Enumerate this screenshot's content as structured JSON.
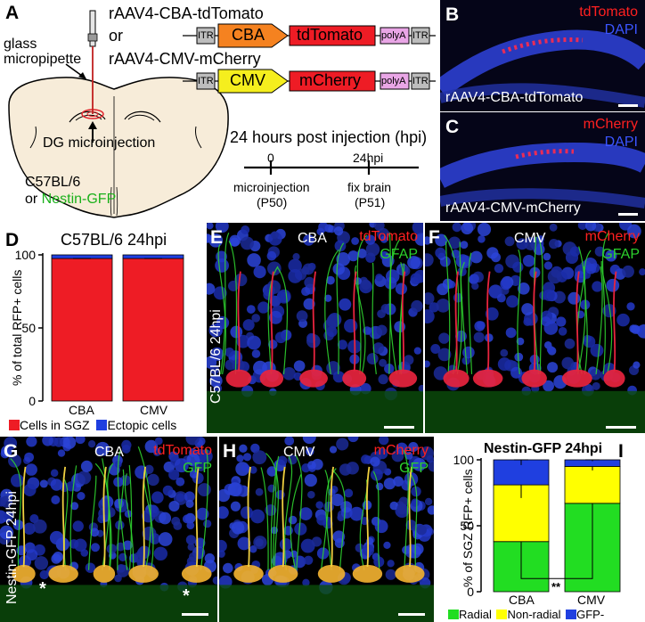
{
  "panelA": {
    "label": "A",
    "construct1": {
      "name": "rAAV4-CBA-tdTomato",
      "itr": "ITR",
      "promoter": "CBA",
      "gene": "tdTomato",
      "polyA": "polyA"
    },
    "or_text": "or",
    "construct2": {
      "name": "rAAV4-CMV-mCherry",
      "itr": "ITR",
      "promoter": "CMV",
      "gene": "mCherry",
      "polyA": "polyA"
    },
    "pipette_label_1": "glass",
    "pipette_label_2": "micropipette",
    "injection_label": "DG microinjection",
    "mouse_line_1": "C57BL/6",
    "mouse_line_2_prefix": "or ",
    "mouse_line_2_green": "Nestin-GFP",
    "timeline_title": "24 hours post injection (hpi)",
    "timeline_tick0": "0",
    "timeline_tick1": "24hpi",
    "event0_line1": "microinjection",
    "event0_line2": "(P50)",
    "event1_line1": "fix brain",
    "event1_line2": "(P51)",
    "colors": {
      "cba": "#f58220",
      "cmv": "#f5ee1e",
      "gene": "#ee1c25",
      "polyA": "#e9a6e6",
      "itr": "#bdbdbd",
      "brain": "#f7ecd9"
    }
  },
  "panelB": {
    "label": "B",
    "marker": "tdTomato",
    "stain": "DAPI",
    "caption": "rAAV4-CBA-tdTomato"
  },
  "panelC": {
    "label": "C",
    "marker": "mCherry",
    "stain": "DAPI",
    "caption": "rAAV4-CMV-mCherry"
  },
  "panelD": {
    "label": "D",
    "chart_data": {
      "type": "bar",
      "stacked": true,
      "title": "C57BL/6 24hpi",
      "ylabel": "% of total RFP+ cells",
      "ylim": [
        0,
        100
      ],
      "yticks": [
        "0",
        "50",
        "100"
      ],
      "categories": [
        "CBA",
        "CMV"
      ],
      "series": [
        {
          "name": "Cells in SGZ",
          "color": "#ee1c25",
          "values": [
            97.5,
            97.5
          ]
        },
        {
          "name": "Ectopic cells",
          "color": "#1f3fe0",
          "values": [
            2.5,
            2.5
          ]
        }
      ]
    }
  },
  "panelE": {
    "label": "E",
    "condition": "CBA",
    "marker": "tdTomato",
    "stain": "GFAP",
    "side_label": "C57BL/6 24hpi"
  },
  "panelF": {
    "label": "F",
    "condition": "CMV",
    "marker": "mCherry",
    "stain": "GFAP"
  },
  "panelG": {
    "label": "G",
    "condition": "CBA",
    "marker": "tdTomato",
    "stain": "GFP",
    "side_label": "Nestin-GFP 24hpi"
  },
  "panelH": {
    "label": "H",
    "condition": "CMV",
    "marker": "mCherry",
    "stain": "GFP"
  },
  "panelI": {
    "label": "I",
    "significance": "**",
    "chart_data": {
      "type": "bar",
      "stacked": true,
      "title": "Nestin-GFP 24hpi",
      "ylabel": "% of SGZ RFP+ cells",
      "ylim": [
        0,
        100
      ],
      "yticks": [
        "0",
        "50",
        "100"
      ],
      "categories": [
        "CBA",
        "CMV"
      ],
      "series": [
        {
          "name": "Radial",
          "color": "#22dd22",
          "values": [
            38,
            67
          ],
          "errors": [
            7,
            5
          ]
        },
        {
          "name": "Non-radial",
          "color": "#ffff00",
          "values": [
            43,
            28
          ],
          "errors": [
            10,
            3
          ]
        },
        {
          "name": "GFP-",
          "color": "#1f3fe0",
          "values": [
            19,
            5
          ],
          "errors": [
            4,
            1
          ]
        }
      ]
    }
  }
}
